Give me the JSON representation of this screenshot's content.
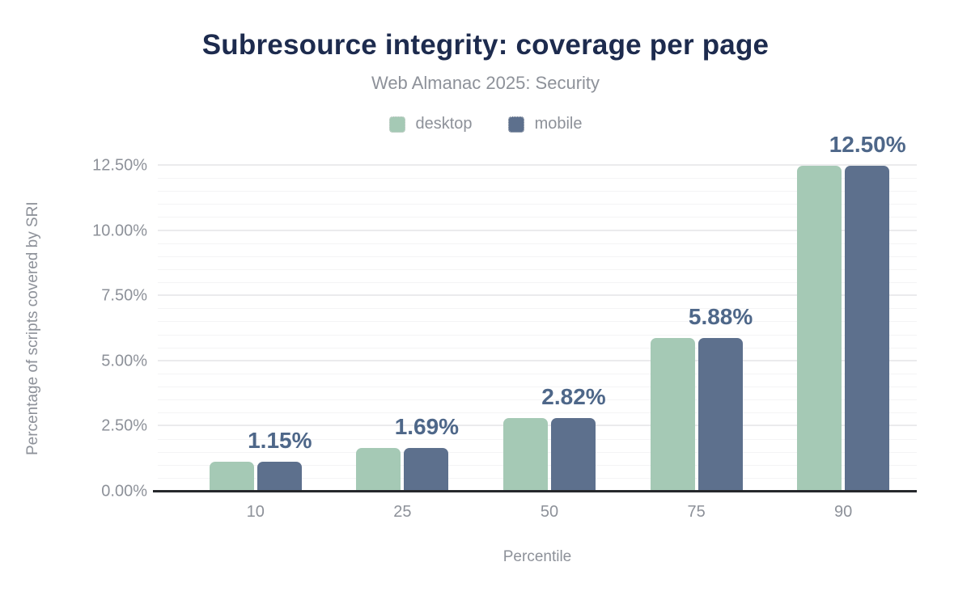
{
  "header": {
    "title": "Subresource integrity: coverage per page",
    "subtitle": "Web Almanac 2025: Security"
  },
  "legend": {
    "items": [
      {
        "label": "desktop",
        "color": "#a5c9b5"
      },
      {
        "label": "mobile",
        "color": "#5d708d"
      }
    ]
  },
  "chart_data": {
    "type": "bar",
    "categories": [
      "10",
      "25",
      "50",
      "75",
      "90"
    ],
    "series": [
      {
        "name": "desktop",
        "color": "#a5c9b5",
        "values": [
          1.15,
          1.69,
          2.82,
          5.88,
          12.5
        ]
      },
      {
        "name": "mobile",
        "color": "#5d708d",
        "values": [
          1.15,
          1.69,
          2.82,
          5.88,
          12.5
        ]
      }
    ],
    "data_labels": [
      "1.15%",
      "1.69%",
      "2.82%",
      "5.88%",
      "12.50%"
    ],
    "title": "Subresource integrity: coverage per page",
    "subtitle": "Web Almanac 2025: Security",
    "xlabel": "Percentile",
    "ylabel": "Percentage of scripts covered by SRI",
    "ylim": [
      0,
      12.5
    ],
    "ytick_labels": [
      "0.00%",
      "2.50%",
      "5.00%",
      "7.50%",
      "10.00%",
      "12.50%"
    ],
    "ytick_values": [
      0,
      2.5,
      5,
      7.5,
      10,
      12.5
    ],
    "minor_grid_step": 0.5,
    "grid": "horizontal-major-minor",
    "legend_position": "top"
  },
  "colors": {
    "title": "#1d2b4e",
    "muted_text": "#8d9199",
    "data_label": "#4e6789",
    "axis_line": "#26282c",
    "gridline_major": "#ebebed",
    "gridline_minor": "#f4f4f5",
    "background": "#ffffff"
  }
}
